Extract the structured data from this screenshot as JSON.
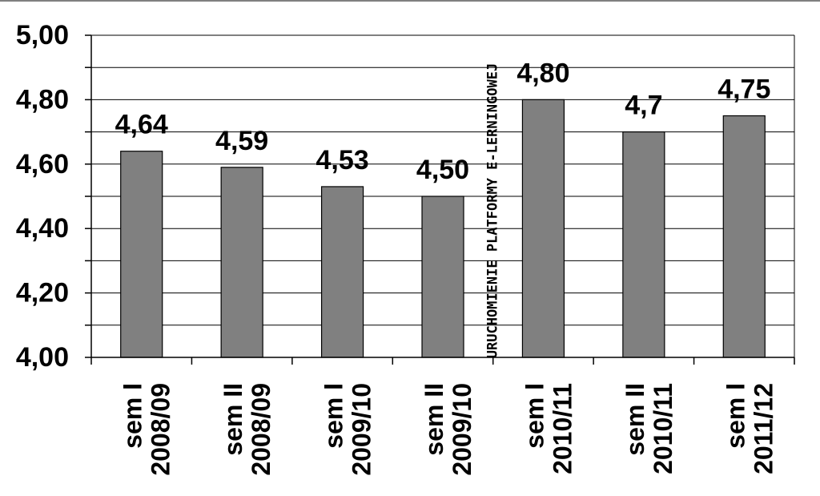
{
  "chart_data": {
    "type": "bar",
    "categories": [
      [
        "sem I",
        "2008/09"
      ],
      [
        "sem II",
        "2008/09"
      ],
      [
        "sem I",
        "2009/10"
      ],
      [
        "sem II",
        "2009/10"
      ],
      [
        "sem I",
        "2010/11"
      ],
      [
        "sem II",
        "2010/11"
      ],
      [
        "sem I",
        "2011/12"
      ]
    ],
    "values": [
      4.64,
      4.59,
      4.53,
      4.5,
      4.8,
      4.7,
      4.75
    ],
    "data_labels": [
      "4,64",
      "4,59",
      "4,53",
      "4,50",
      "4,80",
      "4,7",
      "4,75"
    ],
    "yticks": [
      4.0,
      4.2,
      4.4,
      4.6,
      4.8,
      5.0
    ],
    "ytick_labels": [
      "4,00",
      "4,20",
      "4,40",
      "4,60",
      "4,80",
      "5,00"
    ],
    "ylim": [
      4.0,
      5.0
    ],
    "grid": true,
    "annotation": "URUCHOMIENIE PLATFORMY E-LERNINGOWEJ",
    "colors": {
      "bar": "#808080",
      "bar_stroke": "#000000",
      "grid": "#000000",
      "background": "#ffffff"
    }
  }
}
